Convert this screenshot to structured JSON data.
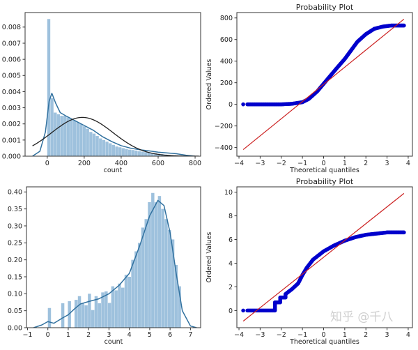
{
  "chart_data": [
    {
      "type": "histogram",
      "xlabel": "count",
      "ylabel": "",
      "title": "",
      "xlim": [
        -120,
        830
      ],
      "ylim": [
        0,
        0.0089
      ],
      "xticks": [
        "0",
        "200",
        "400",
        "600",
        "800"
      ],
      "xtick_values": [
        0,
        200,
        400,
        600,
        800
      ],
      "yticks": [
        "0.000",
        "0.001",
        "0.002",
        "0.003",
        "0.004",
        "0.005",
        "0.006",
        "0.007",
        "0.008"
      ],
      "ytick_values": [
        0,
        0.001,
        0.002,
        0.003,
        0.004,
        0.005,
        0.006,
        0.007,
        0.008
      ],
      "bin_start": 0,
      "bin_width": 17.5,
      "bar_values": [
        0.0085,
        0.0036,
        0.0027,
        0.0026,
        0.0025,
        0.0025,
        0.0024,
        0.0023,
        0.0022,
        0.0021,
        0.002,
        0.00185,
        0.0017,
        0.0015,
        0.0014,
        0.00125,
        0.0011,
        0.001,
        0.0009,
        0.0008,
        0.0007,
        0.0006,
        0.00055,
        0.0005,
        0.00045,
        0.0004,
        0.00038,
        0.00035,
        0.0003,
        0.00028,
        0.00025,
        0.00022,
        0.0002,
        0.00018,
        0.00015,
        0.00012,
        0.0001,
        8e-05,
        6e-05,
        4e-05,
        3e-05,
        2e-05
      ],
      "bar_color": "#9ec1dd",
      "kde_color": "#31719f",
      "kde": [
        [
          -80,
          0
        ],
        [
          -40,
          0.0003
        ],
        [
          -10,
          0.0015
        ],
        [
          10,
          0.0034
        ],
        [
          25,
          0.0039
        ],
        [
          45,
          0.0033
        ],
        [
          70,
          0.0027
        ],
        [
          100,
          0.0025
        ],
        [
          150,
          0.0022
        ],
        [
          200,
          0.0019
        ],
        [
          250,
          0.0016
        ],
        [
          300,
          0.0012
        ],
        [
          350,
          0.0009
        ],
        [
          400,
          0.00065
        ],
        [
          450,
          0.0005
        ],
        [
          500,
          0.0004
        ],
        [
          550,
          0.00033
        ],
        [
          600,
          0.00025
        ],
        [
          650,
          0.0002
        ],
        [
          700,
          0.00015
        ],
        [
          750,
          6e-05
        ],
        [
          800,
          0
        ]
      ],
      "fit": {
        "type": "normal",
        "mean": 190,
        "sd": 166,
        "range": [
          -80,
          820
        ],
        "color": "#222222"
      }
    },
    {
      "type": "scatter",
      "title": "Probability Plot",
      "xlabel": "Theoretical quantiles",
      "ylabel": "Ordered Values",
      "xlim": [
        -4.1,
        4.2
      ],
      "ylim": [
        -480,
        850
      ],
      "xticks": [
        "−4",
        "−3",
        "−2",
        "−1",
        "0",
        "1",
        "2",
        "3",
        "4"
      ],
      "xtick_values": [
        -4,
        -3,
        -2,
        -1,
        0,
        1,
        2,
        3,
        4
      ],
      "yticks": [
        "−400",
        "−200",
        "0",
        "200",
        "400",
        "600",
        "800"
      ],
      "ytick_values": [
        -400,
        -200,
        0,
        200,
        400,
        600,
        800
      ],
      "point_color": "#0000cc",
      "points": [
        [
          -3.8,
          0
        ],
        [
          -3.6,
          0
        ],
        [
          -2,
          0
        ],
        [
          -1.5,
          5
        ],
        [
          -1,
          20
        ],
        [
          -0.7,
          50
        ],
        [
          -0.3,
          120
        ],
        [
          0,
          190
        ],
        [
          0.3,
          260
        ],
        [
          0.6,
          330
        ],
        [
          1,
          420
        ],
        [
          1.3,
          500
        ],
        [
          1.6,
          580
        ],
        [
          2,
          650
        ],
        [
          2.4,
          700
        ],
        [
          2.8,
          720
        ],
        [
          3.2,
          730
        ],
        [
          3.6,
          730
        ],
        [
          3.8,
          730
        ]
      ],
      "fit_line": {
        "slope": 159,
        "intercept": 185,
        "x_range": [
          -3.8,
          3.8
        ],
        "color": "#cc2222"
      }
    },
    {
      "type": "histogram",
      "xlabel": "count",
      "ylabel": "",
      "title": "",
      "xlim": [
        -1.05,
        7.5
      ],
      "ylim": [
        0,
        0.415
      ],
      "xticks": [
        "−1",
        "0",
        "1",
        "2",
        "3",
        "4",
        "5",
        "6",
        "7"
      ],
      "xtick_values": [
        -1,
        0,
        1,
        2,
        3,
        4,
        5,
        6,
        7
      ],
      "yticks": [
        "0.00",
        "0.05",
        "0.10",
        "0.15",
        "0.20",
        "0.25",
        "0.30",
        "0.35",
        "0.40"
      ],
      "ytick_values": [
        0,
        0.05,
        0.1,
        0.15,
        0.2,
        0.25,
        0.3,
        0.35,
        0.4
      ],
      "bin_start": 0,
      "bin_width": 0.1637,
      "bar_values": [
        0.058,
        0,
        0,
        0,
        0.072,
        0,
        0.078,
        0,
        0.082,
        0.093,
        0.072,
        0.066,
        0.1,
        0.052,
        0.093,
        0.072,
        0.104,
        0.107,
        0.073,
        0.122,
        0.11,
        0.13,
        0.118,
        0.156,
        0.15,
        0.2,
        0.225,
        0.25,
        0.295,
        0.32,
        0.37,
        0.397,
        0.37,
        0.388,
        0.35,
        0.32,
        0.288,
        0.26,
        0.185,
        0.122
      ],
      "bar_color": "#9ec1dd",
      "kde_color": "#31719f",
      "kde": [
        [
          -0.7,
          0
        ],
        [
          -0.3,
          0.008
        ],
        [
          0,
          0.018
        ],
        [
          0.3,
          0.013
        ],
        [
          0.7,
          0.028
        ],
        [
          1,
          0.038
        ],
        [
          1.3,
          0.055
        ],
        [
          1.6,
          0.07
        ],
        [
          2,
          0.077
        ],
        [
          2.5,
          0.085
        ],
        [
          3,
          0.1
        ],
        [
          3.5,
          0.125
        ],
        [
          4,
          0.16
        ],
        [
          4.5,
          0.24
        ],
        [
          5,
          0.33
        ],
        [
          5.4,
          0.375
        ],
        [
          5.7,
          0.36
        ],
        [
          6,
          0.28
        ],
        [
          6.3,
          0.16
        ],
        [
          6.6,
          0.05
        ],
        [
          7,
          0.005
        ],
        [
          7.3,
          0
        ]
      ]
    },
    {
      "type": "scatter",
      "title": "Probability Plot",
      "xlabel": "Theoretical quantiles",
      "ylabel": "Ordered Values",
      "xlim": [
        -4.1,
        4.2
      ],
      "ylim": [
        -1.45,
        10.45
      ],
      "xticks": [
        "−4",
        "−3",
        "−2",
        "−1",
        "0",
        "1",
        "2",
        "3",
        "4"
      ],
      "xtick_values": [
        -4,
        -3,
        -2,
        -1,
        0,
        1,
        2,
        3,
        4
      ],
      "yticks": [
        "0",
        "2",
        "4",
        "6",
        "8",
        "10"
      ],
      "ytick_values": [
        0,
        2,
        4,
        6,
        8,
        10
      ],
      "point_color": "#0000cc",
      "points": [
        [
          -3.8,
          0
        ],
        [
          -3.6,
          0
        ],
        [
          -2.3,
          0
        ],
        [
          -2.3,
          0.69
        ],
        [
          -2.05,
          0.69
        ],
        [
          -2.05,
          1.1
        ],
        [
          -1.8,
          1.1
        ],
        [
          -1.8,
          1.39
        ],
        [
          -1.65,
          1.6
        ],
        [
          -1.5,
          1.8
        ],
        [
          -1.2,
          2.3
        ],
        [
          -1,
          3
        ],
        [
          -0.8,
          3.6
        ],
        [
          -0.5,
          4.3
        ],
        [
          0,
          5
        ],
        [
          0.5,
          5.5
        ],
        [
          1,
          5.9
        ],
        [
          1.5,
          6.2
        ],
        [
          2,
          6.4
        ],
        [
          2.5,
          6.5
        ],
        [
          3,
          6.6
        ],
        [
          3.8,
          6.6
        ]
      ],
      "fit_line": {
        "slope": 1.42,
        "intercept": 4.5,
        "x_range": [
          -3.8,
          3.8
        ],
        "color": "#cc2222"
      },
      "watermark": "知乎 @千八"
    }
  ]
}
